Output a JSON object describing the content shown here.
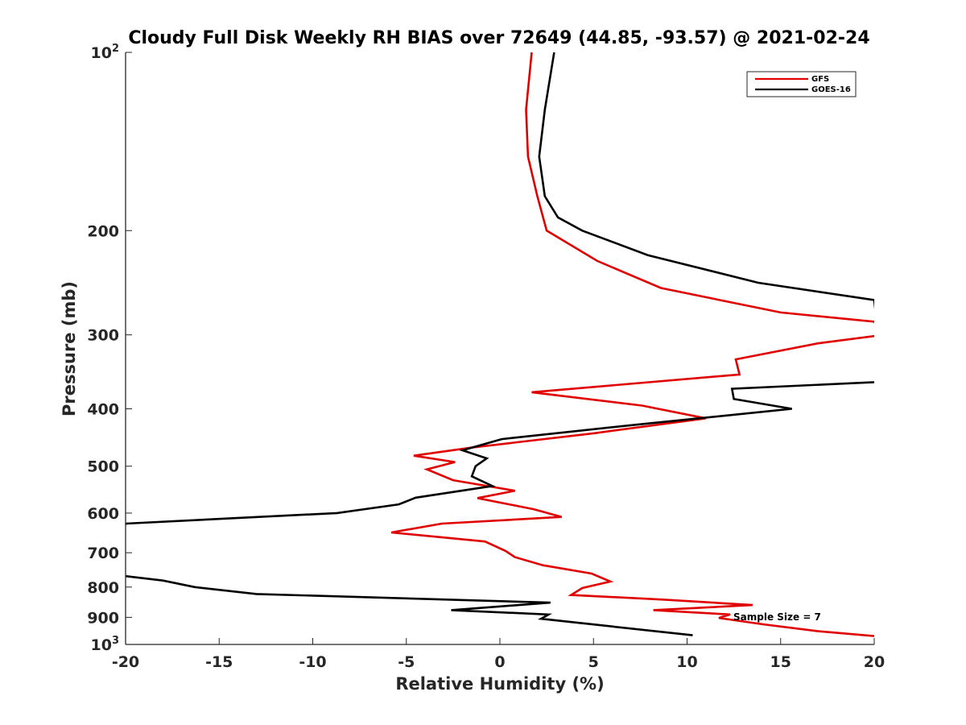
{
  "chart_data": {
    "type": "line",
    "title": "Cloudy Full Disk Weekly RH BIAS over 72649 (44.85, -93.57) @ 2021-02-24",
    "xlabel": "Relative Humidity (%)",
    "ylabel": "Pressure (mb)",
    "xlim": [
      -20,
      20
    ],
    "ylim": [
      100,
      1000
    ],
    "y_scale": "log",
    "y_reversed": true,
    "x_ticks": [
      -20,
      -15,
      -10,
      -5,
      0,
      5,
      10,
      15,
      20
    ],
    "x_tick_labels": [
      "-20",
      "-15",
      "-10",
      "-5",
      "0",
      "5",
      "10",
      "15",
      "20"
    ],
    "y_ticks": [
      100,
      200,
      300,
      400,
      500,
      600,
      700,
      800,
      900,
      1000
    ],
    "y_tick_labels": [
      {
        "base": "10",
        "exp": "2"
      },
      {
        "text": "200"
      },
      {
        "text": "300"
      },
      {
        "text": "400"
      },
      {
        "text": "500"
      },
      {
        "text": "600"
      },
      {
        "text": "700"
      },
      {
        "text": "800"
      },
      {
        "text": "900"
      },
      {
        "base": "10",
        "exp": "3"
      }
    ],
    "grid": false,
    "legend_position": "top-right",
    "annotation": "Sample Size = 7",
    "series": [
      {
        "name": "GFS",
        "color": "#e00000",
        "points": [
          [
            1.7,
            100
          ],
          [
            1.4,
            125
          ],
          [
            1.5,
            150
          ],
          [
            2.0,
            175
          ],
          [
            2.5,
            200
          ],
          [
            5.2,
            225
          ],
          [
            8.6,
            250
          ],
          [
            15.0,
            275
          ],
          [
            20.0,
            285
          ],
          [
            20.5,
            300
          ],
          [
            17.0,
            310
          ],
          [
            12.6,
            330
          ],
          [
            12.8,
            350
          ],
          [
            1.7,
            375
          ],
          [
            7.6,
            395
          ],
          [
            11.0,
            415
          ],
          [
            5.0,
            440
          ],
          [
            -1.5,
            465
          ],
          [
            -4.6,
            480
          ],
          [
            -2.4,
            492
          ],
          [
            -3.9,
            506
          ],
          [
            -2.5,
            528
          ],
          [
            0.8,
            550
          ],
          [
            -1.2,
            566
          ],
          [
            1.8,
            591
          ],
          [
            3.3,
            609
          ],
          [
            -3.1,
            625
          ],
          [
            -5.8,
            647
          ],
          [
            -0.8,
            670
          ],
          [
            0.3,
            695
          ],
          [
            0.8,
            712
          ],
          [
            2.3,
            735
          ],
          [
            4.9,
            759
          ],
          [
            5.9,
            783
          ],
          [
            4.4,
            803
          ],
          [
            3.8,
            825
          ],
          [
            8.7,
            840
          ],
          [
            13.5,
            858
          ],
          [
            8.2,
            875
          ],
          [
            12.3,
            890
          ],
          [
            11.7,
            902
          ],
          [
            14.1,
            925
          ],
          [
            17.0,
            950
          ],
          [
            20.0,
            968
          ]
        ]
      },
      {
        "name": "GOES-16",
        "color": "#000000",
        "points": [
          [
            2.9,
            100
          ],
          [
            2.4,
            125
          ],
          [
            2.1,
            150
          ],
          [
            2.4,
            175
          ],
          [
            3.1,
            190
          ],
          [
            4.4,
            200
          ],
          [
            7.9,
            220
          ],
          [
            13.8,
            245
          ],
          [
            20.0,
            262
          ],
          [
            20.5,
            360
          ],
          [
            12.4,
            370
          ],
          [
            12.5,
            385
          ],
          [
            15.6,
            400
          ],
          [
            7.4,
            425
          ],
          [
            0.1,
            450
          ],
          [
            -2.0,
            470
          ],
          [
            -0.7,
            485
          ],
          [
            -1.3,
            500
          ],
          [
            -1.5,
            520
          ],
          [
            -0.4,
            540
          ],
          [
            -4.5,
            565
          ],
          [
            -5.4,
            580
          ],
          [
            -8.7,
            600
          ],
          [
            -20.0,
            625
          ],
          [
            -21.0,
            760
          ],
          [
            -18.0,
            780
          ],
          [
            -16.3,
            800
          ],
          [
            -13.0,
            822
          ],
          [
            2.7,
            850
          ],
          [
            -2.6,
            875
          ],
          [
            2.6,
            890
          ],
          [
            2.2,
            905
          ],
          [
            10.3,
            965
          ]
        ]
      }
    ]
  }
}
